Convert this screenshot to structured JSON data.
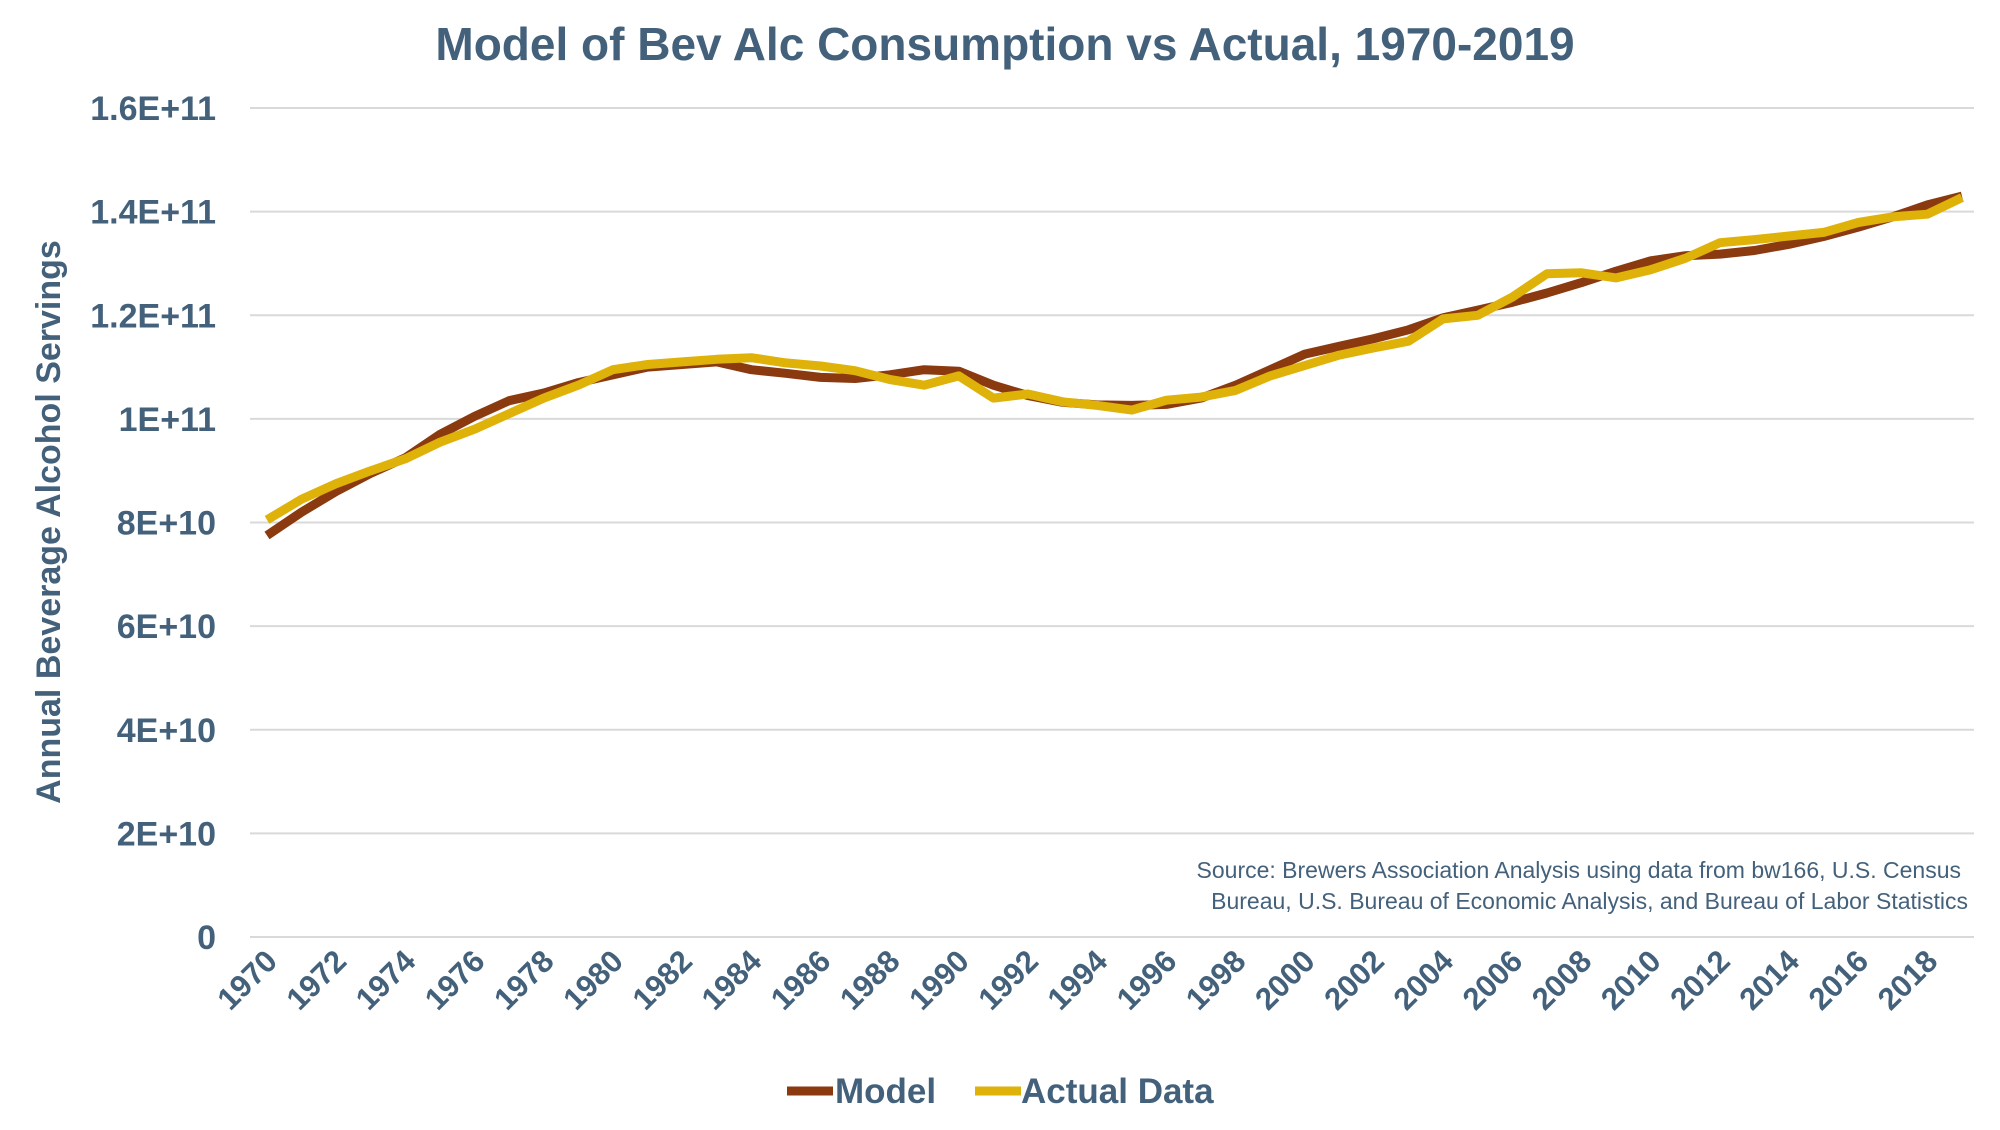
{
  "chart_data": {
    "type": "line",
    "title": "Model of Bev Alc Consumption vs Actual, 1970-2019",
    "xlabel": "",
    "ylabel": "Annual Beverage Alcohol Servings",
    "ylim": [
      0,
      160000000000
    ],
    "yticks": [
      0,
      20000000000,
      40000000000,
      60000000000,
      80000000000,
      100000000000,
      120000000000,
      140000000000,
      160000000000
    ],
    "ytick_labels": [
      "0",
      "2E+10",
      "4E+10",
      "6E+10",
      "8E+10",
      "1E+11",
      "1.2E+11",
      "1.4E+11",
      "1.6E+11"
    ],
    "xtick_labels": [
      "1970",
      "1972",
      "1974",
      "1976",
      "1978",
      "1980",
      "1982",
      "1984",
      "1986",
      "1988",
      "1990",
      "1992",
      "1994",
      "1996",
      "1998",
      "2000",
      "2002",
      "2004",
      "2006",
      "2008",
      "2010",
      "2012",
      "2014",
      "2016",
      "2018"
    ],
    "x": [
      1970,
      1971,
      1972,
      1973,
      1974,
      1975,
      1976,
      1977,
      1978,
      1979,
      1980,
      1981,
      1982,
      1983,
      1984,
      1985,
      1986,
      1987,
      1988,
      1989,
      1990,
      1991,
      1992,
      1993,
      1994,
      1995,
      1996,
      1997,
      1998,
      1999,
      2000,
      2001,
      2002,
      2003,
      2004,
      2005,
      2006,
      2007,
      2008,
      2009,
      2010,
      2011,
      2012,
      2013,
      2014,
      2015,
      2016,
      2017,
      2018,
      2019
    ],
    "grid": true,
    "legend": "bottom",
    "annotation": [
      "Source: Brewers Association Analysis using data from bw166, U.S. Census",
      "Bureau, U.S. Bureau of Economic Analysis, and Bureau of Labor Statistics"
    ],
    "series": [
      {
        "name": "Model",
        "color": "#8b3a0f",
        "values": [
          77500000000.0,
          82000000000.0,
          86000000000.0,
          89500000000.0,
          92500000000.0,
          97000000000.0,
          100500000000.0,
          103500000000.0,
          105000000000.0,
          107000000000.0,
          108500000000.0,
          110000000000.0,
          110500000000.0,
          111000000000.0,
          109500000000.0,
          108800000000.0,
          108000000000.0,
          107800000000.0,
          108500000000.0,
          109500000000.0,
          109200000000.0,
          106500000000.0,
          104500000000.0,
          103200000000.0,
          102700000000.0,
          102600000000.0,
          102800000000.0,
          104000000000.0,
          106500000000.0,
          109500000000.0,
          112500000000.0,
          114000000000.0,
          115500000000.0,
          117200000000.0,
          119500000000.0,
          121000000000.0,
          122500000000.0,
          124300000000.0,
          126300000000.0,
          128500000000.0,
          130500000000.0,
          131500000000.0,
          131800000000.0,
          132500000000.0,
          133700000000.0,
          135200000000.0,
          137000000000.0,
          139000000000.0,
          141300000000.0,
          143000000000.0
        ]
      },
      {
        "name": "Actual Data",
        "color": "#dfb20a",
        "values": [
          80500000000.0,
          84500000000.0,
          87500000000.0,
          90000000000.0,
          92300000000.0,
          95500000000.0,
          98000000000.0,
          101000000000.0,
          104000000000.0,
          106500000000.0,
          109500000000.0,
          110500000000.0,
          111000000000.0,
          111500000000.0,
          111800000000.0,
          110800000000.0,
          110200000000.0,
          109300000000.0,
          107600000000.0,
          106500000000.0,
          108300000000.0,
          104000000000.0,
          104800000000.0,
          103300000000.0,
          102600000000.0,
          101700000000.0,
          103600000000.0,
          104200000000.0,
          105500000000.0,
          108300000000.0,
          110300000000.0,
          112300000000.0,
          113700000000.0,
          115000000000.0,
          119300000000.0,
          120000000000.0,
          123500000000.0,
          128000000000.0,
          128200000000.0,
          127200000000.0,
          128800000000.0,
          131000000000.0,
          134000000000.0,
          134600000000.0,
          135300000000.0,
          136000000000.0,
          137900000000.0,
          139000000000.0,
          139500000000.0,
          142700000000.0
        ]
      }
    ]
  }
}
